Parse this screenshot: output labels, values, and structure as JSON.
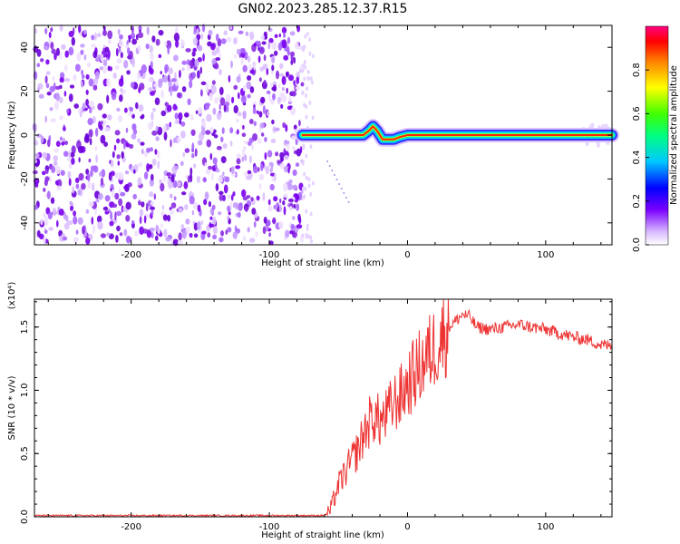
{
  "title": "GN02.2023.285.12.37.R15",
  "colors": {
    "noise": "#8a2be2",
    "snr_line": "#ee3333",
    "frame": "#000000"
  },
  "chart_data": [
    {
      "type": "heatmap",
      "xlabel": "Height of straight line (km)",
      "ylabel": "Frequency (Hz)",
      "xlim": [
        -270,
        148
      ],
      "ylim": [
        -50,
        50
      ],
      "x_ticks": [
        -200,
        -100,
        0,
        100
      ],
      "x_tick_labels": [
        "-200",
        "-100",
        "0",
        "100"
      ],
      "y_ticks": [
        -40,
        -20,
        0,
        20,
        40
      ],
      "y_tick_labels": [
        "-40",
        "-20",
        "0",
        "20",
        "40"
      ],
      "noise_region_x": [
        -270,
        -76
      ],
      "signal_line": {
        "x": [
          -76,
          -70,
          -60,
          -50,
          -40,
          -32,
          -28,
          -25,
          -22,
          -18,
          -14,
          -10,
          -6,
          0,
          20,
          40,
          60,
          80,
          100,
          118,
          125,
          148
        ],
        "y": [
          0,
          0,
          0,
          0,
          0,
          0,
          2,
          4,
          2,
          -2,
          -2,
          -2,
          -1,
          0,
          0,
          0,
          0,
          0,
          0,
          0,
          0,
          0
        ]
      },
      "colorbar": {
        "label": "Normalized spectral amplitude",
        "range": [
          0,
          1
        ],
        "ticks": [
          0.0,
          0.2,
          0.4,
          0.6,
          0.8
        ],
        "tick_labels": [
          "0.0",
          "0.2",
          "0.4",
          "0.6",
          "0.8"
        ]
      },
      "grid": false
    },
    {
      "type": "line",
      "xlabel": "Height of straight line (km)",
      "ylabel": "SNR (10 * v/v)",
      "multiplier_label": "(x10⁴)",
      "xlim": [
        -270,
        148
      ],
      "ylim": [
        0,
        1.72
      ],
      "x_ticks": [
        -200,
        -100,
        0,
        100
      ],
      "x_tick_labels": [
        "-200",
        "-100",
        "0",
        "100"
      ],
      "y_ticks": [
        0.0,
        0.5,
        1.0,
        1.5
      ],
      "y_tick_labels": [
        "0.0",
        "0.5",
        "1.0",
        "1.5"
      ],
      "series": [
        {
          "x": [
            -270,
            -200,
            -150,
            -100,
            -60,
            -56,
            -50,
            -45,
            -40,
            -35,
            -30,
            -25,
            -20,
            -15,
            -10,
            -5,
            0,
            10,
            20,
            30,
            40,
            45,
            50,
            60,
            70,
            80,
            90,
            100,
            110,
            120,
            130,
            140,
            148
          ],
          "values": [
            0.01,
            0.01,
            0.01,
            0.01,
            0.01,
            0.05,
            0.25,
            0.35,
            0.45,
            0.55,
            0.7,
            0.8,
            0.75,
            0.8,
            0.9,
            0.95,
            1.05,
            1.2,
            1.35,
            1.5,
            1.6,
            1.58,
            1.5,
            1.48,
            1.5,
            1.52,
            1.5,
            1.48,
            1.45,
            1.42,
            1.4,
            1.36,
            1.35
          ]
        }
      ],
      "grid": false
    }
  ]
}
